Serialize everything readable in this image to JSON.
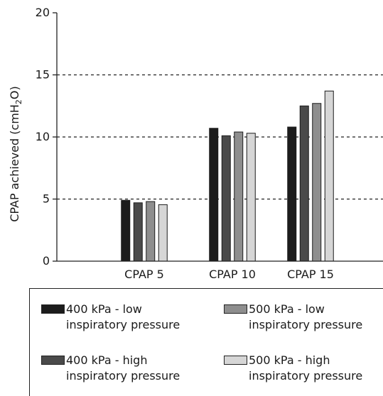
{
  "chart_data": {
    "type": "bar",
    "ylabel": "CPAP achieved (cmH",
    "ylabel_sub": "2",
    "ylabel_tail": "O)",
    "ylim": [
      0,
      20
    ],
    "yticks": [
      "0",
      "5",
      "10",
      "15",
      "20"
    ],
    "grid": "dashed horizontal at 5, 10, 15",
    "categories": [
      "CPAP 5",
      "CPAP 10",
      "CPAP 15"
    ],
    "series": [
      {
        "name": "400 kPa - low inspiratory pressure",
        "color": "#1c1c1c",
        "values": [
          4.9,
          10.7,
          10.8
        ]
      },
      {
        "name": "400 kPa - high inspiratory pressure",
        "color": "#4a4a4a",
        "values": [
          4.7,
          10.1,
          12.5
        ]
      },
      {
        "name": "500 kPa - low inspiratory pressure",
        "color": "#8e8e8e",
        "values": [
          4.8,
          10.4,
          12.7
        ]
      },
      {
        "name": "500 kPa - high inspiratory pressure",
        "color": "#d6d6d6",
        "values": [
          4.55,
          10.3,
          13.7
        ]
      }
    ],
    "legend_placement": "bottom",
    "legend": [
      {
        "label_line1": "400 kPa - low",
        "label_line2": "inspiratory pressure"
      },
      {
        "label_line1": "500 kPa - low",
        "label_line2": "inspiratory pressure"
      },
      {
        "label_line1": "400 kPa - high",
        "label_line2": "inspiratory pressure"
      },
      {
        "label_line1": "500 kPa - high",
        "label_line2": "inspiratory pressure"
      }
    ]
  }
}
